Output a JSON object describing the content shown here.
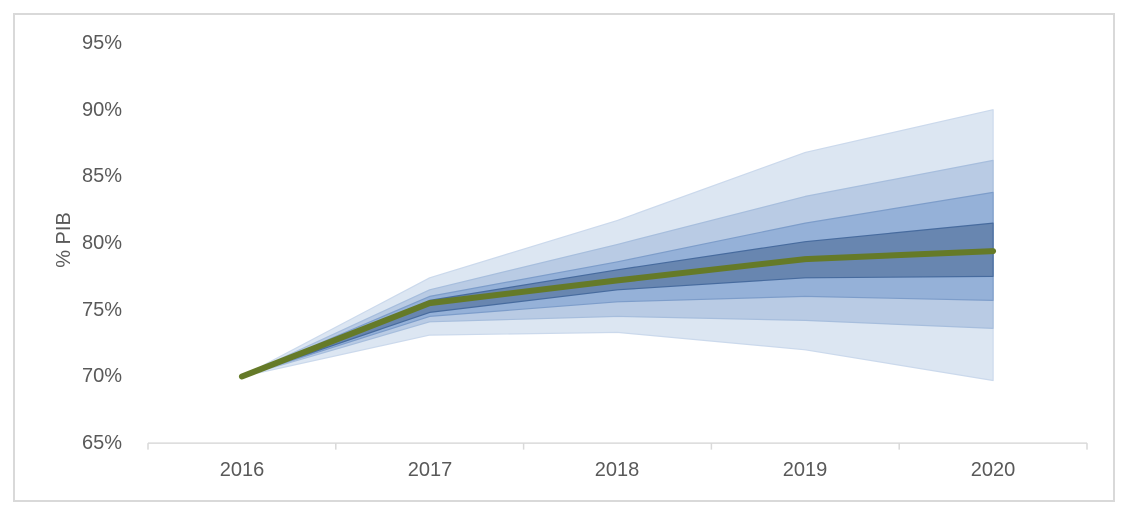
{
  "chart_data": {
    "type": "area",
    "subtype": "fan-chart",
    "title": "",
    "xlabel": "",
    "ylabel": "% PIB",
    "x_labels": [
      "2016",
      "2017",
      "2018",
      "2019",
      "2020"
    ],
    "y_tick_labels": [
      "95%",
      "90%",
      "85%",
      "80%",
      "75%",
      "70%",
      "65%"
    ],
    "y_tick_values": [
      95,
      90,
      85,
      80,
      75,
      70,
      65
    ],
    "ylim": [
      65,
      95
    ],
    "grid": false,
    "legend_position": "none",
    "series": [
      {
        "name": "band-outer",
        "type": "band",
        "lower": [
          70.0,
          73.1,
          73.3,
          72.0,
          69.7
        ],
        "upper": [
          70.0,
          77.4,
          81.7,
          86.8,
          90.0
        ],
        "color": "#dce6f2",
        "stroke": "#cbd9ec"
      },
      {
        "name": "band-light",
        "type": "band",
        "lower": [
          70.0,
          74.1,
          74.5,
          74.2,
          73.6
        ],
        "upper": [
          70.0,
          76.5,
          79.9,
          83.5,
          86.2
        ],
        "color": "#b9cbe4",
        "stroke": "#a7bedd"
      },
      {
        "name": "band-medium",
        "type": "band",
        "lower": [
          70.0,
          74.5,
          75.6,
          76.0,
          75.7
        ],
        "upper": [
          70.0,
          76.0,
          78.6,
          81.5,
          83.8
        ],
        "color": "#95b1d8",
        "stroke": "#7d9dca"
      },
      {
        "name": "band-dark",
        "type": "band",
        "lower": [
          70.0,
          74.8,
          76.5,
          77.4,
          77.5
        ],
        "upper": [
          70.0,
          75.7,
          78.0,
          80.1,
          81.5
        ],
        "color": "#6886b0",
        "stroke": "#476b9e"
      },
      {
        "name": "central-projection",
        "type": "line",
        "values": [
          70.0,
          75.5,
          77.2,
          78.8,
          79.4
        ],
        "color": "#657a28"
      }
    ],
    "colors": {
      "axis_line": "#d9d9d9",
      "tick_text": "#595959",
      "chart_border": "#d9d9d9",
      "background": "#ffffff",
      "central_line": "#657a28"
    }
  }
}
